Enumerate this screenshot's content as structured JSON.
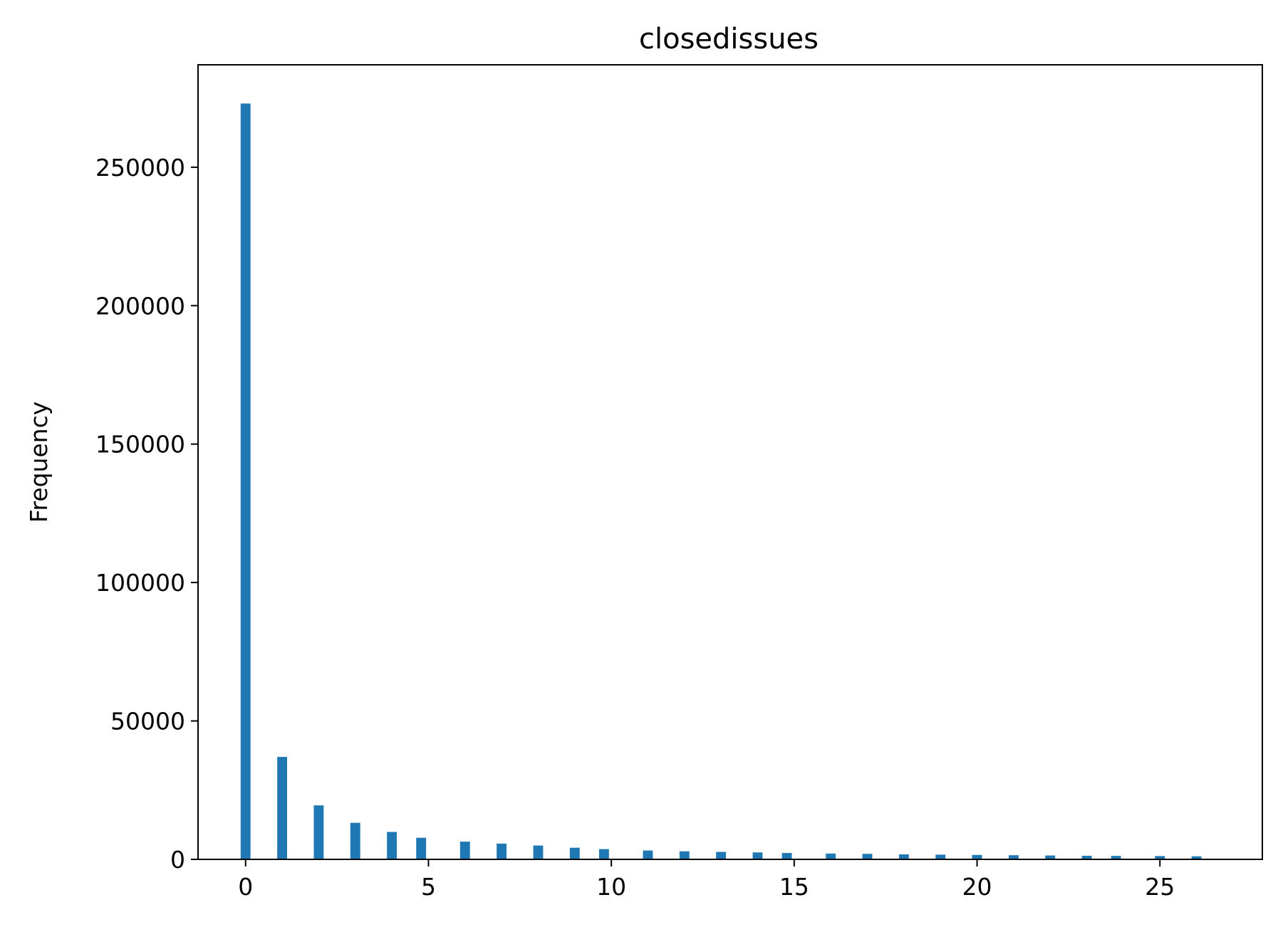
{
  "chart_data": {
    "type": "bar",
    "title": "closedissues",
    "xlabel": "",
    "ylabel": "Frequency",
    "xlim": [
      -1.3,
      27.8
    ],
    "ylim": [
      0,
      287000
    ],
    "xticks": [
      0,
      5,
      10,
      15,
      20,
      25
    ],
    "yticks": [
      0,
      50000,
      100000,
      150000,
      200000,
      250000
    ],
    "grid": false,
    "bar_color": "#1f77b4",
    "bar_width": 0.27,
    "x": [
      0,
      1,
      2,
      3,
      4,
      4.8,
      6,
      7,
      8,
      9,
      9.8,
      11,
      12,
      13,
      14,
      14.8,
      16,
      17,
      18,
      19,
      20,
      21,
      22,
      23,
      23.8,
      25,
      26
    ],
    "values": [
      273000,
      37000,
      19500,
      13200,
      9900,
      7800,
      6400,
      5700,
      5000,
      4200,
      3700,
      3200,
      2900,
      2700,
      2500,
      2300,
      2100,
      2000,
      1800,
      1700,
      1600,
      1500,
      1400,
      1300,
      1250,
      1200,
      1100
    ]
  }
}
